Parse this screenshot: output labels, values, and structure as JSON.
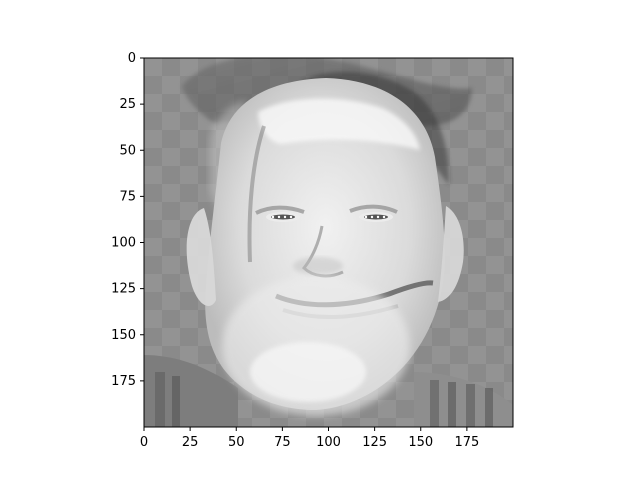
{
  "figure": {
    "kind": "image-plot",
    "image_description_name": "grayscale-face-composite",
    "x_axis": {
      "ticks": [
        0,
        25,
        50,
        75,
        100,
        125,
        150,
        175
      ],
      "tick_labels": [
        "0",
        "25",
        "50",
        "75",
        "100",
        "125",
        "150",
        "175"
      ],
      "range": [
        0,
        200
      ]
    },
    "y_axis": {
      "ticks": [
        0,
        25,
        50,
        75,
        100,
        125,
        150,
        175
      ],
      "tick_labels": [
        "0",
        "25",
        "50",
        "75",
        "100",
        "125",
        "150",
        "175"
      ],
      "range": [
        0,
        200
      ],
      "inverted": true
    },
    "colormap": "gray",
    "background_color": "#8a8a8a",
    "face_tone": "#e8e8e8",
    "hat_tone": "#6f6f6f"
  }
}
